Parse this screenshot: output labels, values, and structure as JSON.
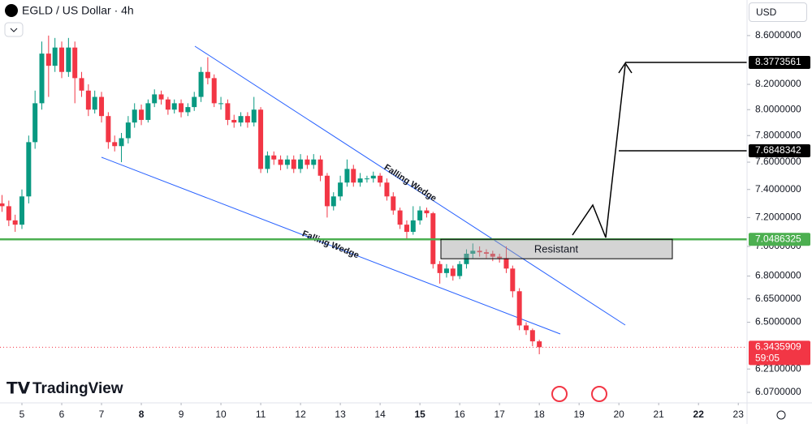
{
  "chart_data": {
    "type": "candlestick",
    "title": "EGLD / US Dollar · 4h",
    "currency": "USD",
    "brand": "TradingView",
    "up_color": "#089981",
    "down_color": "#f23645",
    "log_scale": true,
    "xlim": [
      4.449,
      23.22
    ],
    "xticks": [
      5,
      6,
      7,
      8,
      9,
      10,
      11,
      12,
      13,
      14,
      15,
      16,
      17,
      18,
      19,
      20,
      21,
      22,
      23
    ],
    "ylim": [
      6.008,
      8.904
    ],
    "yticks": [
      {
        "value": 8.6,
        "label": "8.6000000"
      },
      {
        "value": 8.2,
        "label": "8.2000000"
      },
      {
        "value": 8.0,
        "label": "8.0000000"
      },
      {
        "value": 7.8,
        "label": "7.8000000"
      },
      {
        "value": 7.6,
        "label": "7.6000000"
      },
      {
        "value": 7.4,
        "label": "7.4000000"
      },
      {
        "value": 7.2,
        "label": "7.2000000"
      },
      {
        "value": 7.0,
        "label": "7.0000000"
      },
      {
        "value": 6.8,
        "label": "6.8000000"
      },
      {
        "value": 6.65,
        "label": "6.6500000"
      },
      {
        "value": 6.5,
        "label": "6.5000000"
      },
      {
        "value": 6.21,
        "label": "6.2100000"
      },
      {
        "value": 6.07,
        "label": "6.0700000"
      }
    ],
    "x": [
      4.5,
      4.67,
      4.83,
      5.0,
      5.17,
      5.33,
      5.5,
      5.67,
      5.83,
      6.0,
      6.17,
      6.33,
      6.5,
      6.67,
      6.83,
      7.0,
      7.17,
      7.33,
      7.5,
      7.67,
      7.83,
      8.0,
      8.17,
      8.33,
      8.5,
      8.67,
      8.83,
      9.0,
      9.17,
      9.33,
      9.5,
      9.67,
      9.83,
      10.0,
      10.17,
      10.33,
      10.5,
      10.67,
      10.83,
      11.0,
      11.17,
      11.33,
      11.5,
      11.67,
      11.83,
      12.0,
      12.17,
      12.33,
      12.5,
      12.67,
      12.83,
      13.0,
      13.17,
      13.33,
      13.5,
      13.67,
      13.83,
      14.0,
      14.17,
      14.33,
      14.5,
      14.67,
      14.83,
      15.0,
      15.17,
      15.33,
      15.5,
      15.67,
      15.83,
      16.0,
      16.17,
      16.33,
      16.5,
      16.67,
      16.83,
      17.0,
      17.17,
      17.33,
      17.5,
      17.67,
      17.83,
      18.0
    ],
    "open": [
      7.3,
      7.28,
      7.18,
      7.15,
      7.35,
      7.75,
      8.05,
      8.45,
      8.35,
      8.5,
      8.3,
      8.5,
      8.25,
      8.15,
      8.0,
      8.1,
      7.95,
      7.75,
      7.72,
      7.78,
      7.9,
      8.0,
      7.92,
      8.05,
      8.12,
      8.08,
      8.0,
      8.05,
      7.98,
      8.02,
      8.1,
      8.3,
      8.25,
      8.05,
      8.05,
      7.92,
      7.9,
      7.95,
      7.9,
      8.0,
      7.55,
      7.65,
      7.62,
      7.58,
      7.62,
      7.55,
      7.62,
      7.58,
      7.62,
      7.5,
      7.28,
      7.35,
      7.45,
      7.55,
      7.45,
      7.48,
      7.48,
      7.5,
      7.45,
      7.35,
      7.25,
      7.15,
      7.1,
      7.18,
      7.25,
      7.23,
      6.88,
      6.82,
      6.85,
      6.8,
      6.88,
      6.95,
      6.97,
      6.96,
      6.95,
      6.93,
      6.92,
      6.85,
      6.7,
      6.48,
      6.45,
      6.38
    ],
    "high": [
      7.36,
      7.32,
      7.22,
      7.4,
      7.8,
      8.15,
      8.55,
      8.6,
      8.58,
      8.55,
      8.58,
      8.55,
      8.3,
      8.2,
      8.15,
      8.14,
      7.98,
      7.8,
      7.82,
      7.95,
      8.05,
      8.04,
      8.08,
      8.16,
      8.15,
      8.1,
      8.08,
      8.08,
      8.05,
      8.14,
      8.34,
      8.42,
      8.28,
      8.1,
      8.08,
      7.96,
      7.98,
      7.98,
      8.1,
      8.02,
      7.68,
      7.68,
      7.65,
      7.65,
      7.65,
      7.66,
      7.65,
      7.66,
      7.65,
      7.52,
      7.38,
      7.5,
      7.62,
      7.58,
      7.52,
      7.5,
      7.53,
      7.52,
      7.48,
      7.38,
      7.27,
      7.18,
      7.28,
      7.28,
      7.27,
      7.24,
      6.9,
      6.88,
      6.87,
      6.9,
      6.98,
      7.02,
      7.0,
      6.98,
      6.97,
      6.95,
      7.0,
      6.87,
      6.72,
      6.5,
      6.46,
      6.39
    ],
    "low": [
      7.24,
      7.14,
      7.1,
      7.12,
      7.3,
      7.7,
      8.0,
      8.1,
      8.3,
      8.25,
      8.26,
      8.05,
      8.1,
      7.95,
      7.97,
      7.9,
      7.7,
      7.68,
      7.6,
      7.74,
      7.86,
      7.88,
      7.9,
      8.02,
      8.04,
      7.96,
      7.97,
      7.94,
      7.95,
      7.99,
      8.06,
      8.2,
      8.02,
      8.0,
      7.88,
      7.86,
      7.87,
      7.86,
      7.87,
      7.52,
      7.52,
      7.58,
      7.54,
      7.55,
      7.52,
      7.52,
      7.55,
      7.55,
      7.46,
      7.2,
      7.25,
      7.32,
      7.42,
      7.42,
      7.42,
      7.45,
      7.45,
      7.42,
      7.32,
      7.22,
      7.12,
      7.05,
      7.08,
      7.15,
      7.2,
      6.85,
      6.75,
      6.79,
      6.77,
      6.78,
      6.85,
      6.92,
      6.93,
      6.92,
      6.9,
      6.89,
      6.82,
      6.66,
      6.45,
      6.42,
      6.35,
      6.3
    ],
    "close": [
      7.28,
      7.18,
      7.15,
      7.35,
      7.75,
      8.05,
      8.45,
      8.35,
      8.5,
      8.3,
      8.5,
      8.25,
      8.15,
      8.0,
      8.1,
      7.95,
      7.75,
      7.72,
      7.78,
      7.9,
      8.0,
      7.92,
      8.05,
      8.12,
      8.08,
      8.0,
      8.05,
      7.98,
      8.02,
      8.1,
      8.3,
      8.25,
      8.05,
      8.05,
      7.92,
      7.9,
      7.95,
      7.9,
      8.0,
      7.55,
      7.65,
      7.62,
      7.58,
      7.62,
      7.55,
      7.62,
      7.58,
      7.62,
      7.5,
      7.28,
      7.35,
      7.45,
      7.55,
      7.45,
      7.48,
      7.48,
      7.5,
      7.45,
      7.35,
      7.25,
      7.15,
      7.1,
      7.18,
      7.25,
      7.23,
      6.88,
      6.82,
      6.85,
      6.8,
      6.88,
      6.95,
      6.97,
      6.96,
      6.95,
      6.93,
      6.92,
      6.85,
      6.7,
      6.48,
      6.45,
      6.38,
      6.3435909
    ],
    "annotations": {
      "wedge_upper": "Falling Wedge",
      "wedge_lower": "Falling Wedge",
      "zone": "Resistant"
    },
    "price_labels": [
      {
        "value": 8.3773561,
        "color": "#000000"
      },
      {
        "value": 7.6848342,
        "color": "#000000"
      },
      {
        "value": 7.0486325,
        "color": "#4caf50"
      },
      {
        "value": 6.3435909,
        "color": "#f23645",
        "countdown": "59:05"
      }
    ]
  }
}
